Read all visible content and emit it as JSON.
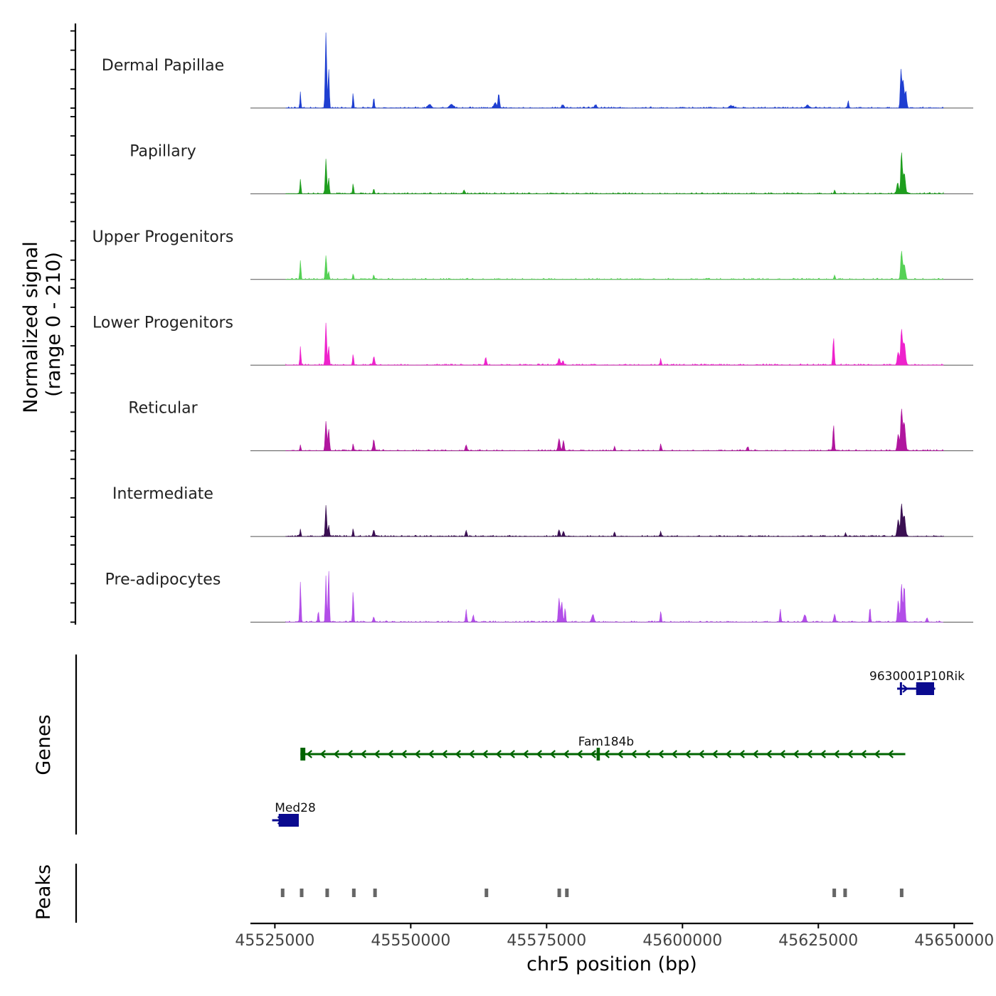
{
  "chart_data": {
    "type": "area",
    "title": "",
    "ylabel_line1": "Normalized signal",
    "ylabel_line2": "(range 0 - 210)",
    "ylim": [
      0,
      210
    ],
    "xlabel": "chr5 position (bp)",
    "xlim": [
      45520500,
      45653500
    ],
    "x_ticks": [
      45525000,
      45550000,
      45575000,
      45600000,
      45625000,
      45650000
    ],
    "x_tick_labels": [
      "45525000",
      "45550000",
      "45575000",
      "45600000",
      "45625000",
      "45650000"
    ],
    "data_extent": [
      45527000,
      45648000
    ],
    "series": [
      {
        "name": "Dermal Papillae",
        "color": "#1f3fd1",
        "peaks": [
          {
            "x": 45529700,
            "v": 45,
            "w": 120
          },
          {
            "x": 45534400,
            "v": 205,
            "w": 180
          },
          {
            "x": 45534900,
            "v": 110,
            "w": 150
          },
          {
            "x": 45539400,
            "v": 42,
            "w": 120
          },
          {
            "x": 45543200,
            "v": 28,
            "w": 150
          },
          {
            "x": 45553500,
            "v": 10,
            "w": 400
          },
          {
            "x": 45557500,
            "v": 10,
            "w": 500
          },
          {
            "x": 45566200,
            "v": 38,
            "w": 200
          },
          {
            "x": 45565500,
            "v": 14,
            "w": 300
          },
          {
            "x": 45578000,
            "v": 8,
            "w": 300
          },
          {
            "x": 45584000,
            "v": 8,
            "w": 300
          },
          {
            "x": 45609000,
            "v": 6,
            "w": 500
          },
          {
            "x": 45623000,
            "v": 8,
            "w": 400
          },
          {
            "x": 45630500,
            "v": 20,
            "w": 150
          },
          {
            "x": 45640200,
            "v": 100,
            "w": 180
          },
          {
            "x": 45640600,
            "v": 75,
            "w": 250
          },
          {
            "x": 45641100,
            "v": 45,
            "w": 200
          }
        ]
      },
      {
        "name": "Papillary",
        "color": "#1e9e1e",
        "peaks": [
          {
            "x": 45529700,
            "v": 40,
            "w": 140
          },
          {
            "x": 45534400,
            "v": 95,
            "w": 180
          },
          {
            "x": 45534900,
            "v": 45,
            "w": 150
          },
          {
            "x": 45539400,
            "v": 28,
            "w": 140
          },
          {
            "x": 45543200,
            "v": 14,
            "w": 150
          },
          {
            "x": 45559800,
            "v": 10,
            "w": 200
          },
          {
            "x": 45628000,
            "v": 10,
            "w": 150
          },
          {
            "x": 45640300,
            "v": 110,
            "w": 200
          },
          {
            "x": 45640800,
            "v": 55,
            "w": 300
          },
          {
            "x": 45639600,
            "v": 30,
            "w": 250
          }
        ]
      },
      {
        "name": "Upper Progenitors",
        "color": "#55d155",
        "peaks": [
          {
            "x": 45529700,
            "v": 52,
            "w": 150
          },
          {
            "x": 45534400,
            "v": 65,
            "w": 180
          },
          {
            "x": 45534900,
            "v": 22,
            "w": 150
          },
          {
            "x": 45539400,
            "v": 15,
            "w": 140
          },
          {
            "x": 45543200,
            "v": 12,
            "w": 150
          },
          {
            "x": 45628000,
            "v": 12,
            "w": 150
          },
          {
            "x": 45640300,
            "v": 75,
            "w": 220
          },
          {
            "x": 45640800,
            "v": 40,
            "w": 300
          }
        ]
      },
      {
        "name": "Lower Progenitors",
        "color": "#ee22cc",
        "peaks": [
          {
            "x": 45529700,
            "v": 48,
            "w": 140
          },
          {
            "x": 45534400,
            "v": 115,
            "w": 180
          },
          {
            "x": 45534900,
            "v": 50,
            "w": 160
          },
          {
            "x": 45539400,
            "v": 30,
            "w": 140
          },
          {
            "x": 45543200,
            "v": 22,
            "w": 200
          },
          {
            "x": 45563800,
            "v": 20,
            "w": 200
          },
          {
            "x": 45577300,
            "v": 18,
            "w": 250
          },
          {
            "x": 45578000,
            "v": 12,
            "w": 200
          },
          {
            "x": 45596000,
            "v": 16,
            "w": 150
          },
          {
            "x": 45627800,
            "v": 75,
            "w": 180
          },
          {
            "x": 45640300,
            "v": 95,
            "w": 220
          },
          {
            "x": 45640800,
            "v": 60,
            "w": 300
          },
          {
            "x": 45639700,
            "v": 35,
            "w": 250
          }
        ]
      },
      {
        "name": "Reticular",
        "color": "#b0169e",
        "peaks": [
          {
            "x": 45529700,
            "v": 15,
            "w": 140
          },
          {
            "x": 45534400,
            "v": 80,
            "w": 200
          },
          {
            "x": 45534900,
            "v": 60,
            "w": 180
          },
          {
            "x": 45539400,
            "v": 20,
            "w": 140
          },
          {
            "x": 45543200,
            "v": 30,
            "w": 200
          },
          {
            "x": 45560200,
            "v": 16,
            "w": 200
          },
          {
            "x": 45577300,
            "v": 32,
            "w": 250
          },
          {
            "x": 45578100,
            "v": 28,
            "w": 200
          },
          {
            "x": 45587500,
            "v": 12,
            "w": 150
          },
          {
            "x": 45596000,
            "v": 20,
            "w": 150
          },
          {
            "x": 45612000,
            "v": 10,
            "w": 200
          },
          {
            "x": 45627800,
            "v": 70,
            "w": 180
          },
          {
            "x": 45640300,
            "v": 110,
            "w": 220
          },
          {
            "x": 45640800,
            "v": 75,
            "w": 300
          },
          {
            "x": 45639700,
            "v": 45,
            "w": 250
          }
        ]
      },
      {
        "name": "Intermediate",
        "color": "#3a0f52",
        "peaks": [
          {
            "x": 45529700,
            "v": 20,
            "w": 140
          },
          {
            "x": 45534400,
            "v": 85,
            "w": 180
          },
          {
            "x": 45534900,
            "v": 30,
            "w": 160
          },
          {
            "x": 45539400,
            "v": 22,
            "w": 140
          },
          {
            "x": 45543200,
            "v": 18,
            "w": 200
          },
          {
            "x": 45560200,
            "v": 16,
            "w": 200
          },
          {
            "x": 45577300,
            "v": 18,
            "w": 200
          },
          {
            "x": 45578100,
            "v": 14,
            "w": 200
          },
          {
            "x": 45587500,
            "v": 12,
            "w": 150
          },
          {
            "x": 45596000,
            "v": 14,
            "w": 150
          },
          {
            "x": 45630000,
            "v": 10,
            "w": 150
          },
          {
            "x": 45640300,
            "v": 85,
            "w": 220
          },
          {
            "x": 45640800,
            "v": 55,
            "w": 300
          },
          {
            "x": 45639700,
            "v": 45,
            "w": 250
          }
        ]
      },
      {
        "name": "Pre-adipocytes",
        "color": "#b24ee8",
        "peaks": [
          {
            "x": 45529700,
            "v": 110,
            "w": 150
          },
          {
            "x": 45534400,
            "v": 125,
            "w": 150
          },
          {
            "x": 45534900,
            "v": 145,
            "w": 150
          },
          {
            "x": 45533000,
            "v": 30,
            "w": 150
          },
          {
            "x": 45539400,
            "v": 85,
            "w": 140
          },
          {
            "x": 45543200,
            "v": 12,
            "w": 200
          },
          {
            "x": 45560200,
            "v": 35,
            "w": 150
          },
          {
            "x": 45561500,
            "v": 18,
            "w": 200
          },
          {
            "x": 45577300,
            "v": 65,
            "w": 200
          },
          {
            "x": 45577800,
            "v": 55,
            "w": 200
          },
          {
            "x": 45578400,
            "v": 40,
            "w": 150
          },
          {
            "x": 45583500,
            "v": 20,
            "w": 300
          },
          {
            "x": 45596000,
            "v": 30,
            "w": 150
          },
          {
            "x": 45618000,
            "v": 35,
            "w": 150
          },
          {
            "x": 45622500,
            "v": 20,
            "w": 300
          },
          {
            "x": 45628000,
            "v": 22,
            "w": 200
          },
          {
            "x": 45634500,
            "v": 40,
            "w": 150
          },
          {
            "x": 45640300,
            "v": 105,
            "w": 200
          },
          {
            "x": 45640800,
            "v": 100,
            "w": 200
          },
          {
            "x": 45639700,
            "v": 60,
            "w": 200
          },
          {
            "x": 45645000,
            "v": 12,
            "w": 200
          }
        ]
      }
    ],
    "genes_label": "Genes",
    "genes": [
      {
        "name": "9630001P10Rik",
        "strand": "+",
        "color": "#0a0a8f",
        "start": 45639500,
        "end": 45646500,
        "exons": [
          [
            45640000,
            45640300
          ],
          [
            45643000,
            45646300
          ]
        ],
        "row": 0
      },
      {
        "name": "Fam184b",
        "strand": "-",
        "color": "#006400",
        "start": 45529700,
        "end": 45641000,
        "exons": [
          [
            45529700,
            45530600
          ],
          [
            45584200,
            45584800
          ]
        ],
        "row": 1
      },
      {
        "name": "Med28",
        "strand": "+",
        "color": "#0a0a8f",
        "start": 45524500,
        "end": 45529400,
        "exons": [
          [
            45525700,
            45529400
          ]
        ],
        "row": 2
      }
    ],
    "peaks_label": "Peaks",
    "peak_regions": [
      [
        45526100,
        45526700
      ],
      [
        45529600,
        45530200
      ],
      [
        45534300,
        45534900
      ],
      [
        45539200,
        45539800
      ],
      [
        45543100,
        45543700
      ],
      [
        45563600,
        45564200
      ],
      [
        45577000,
        45577600
      ],
      [
        45578400,
        45579000
      ],
      [
        45627600,
        45628200
      ],
      [
        45629600,
        45630200
      ],
      [
        45640000,
        45640600
      ]
    ],
    "peak_color": "#666666"
  }
}
